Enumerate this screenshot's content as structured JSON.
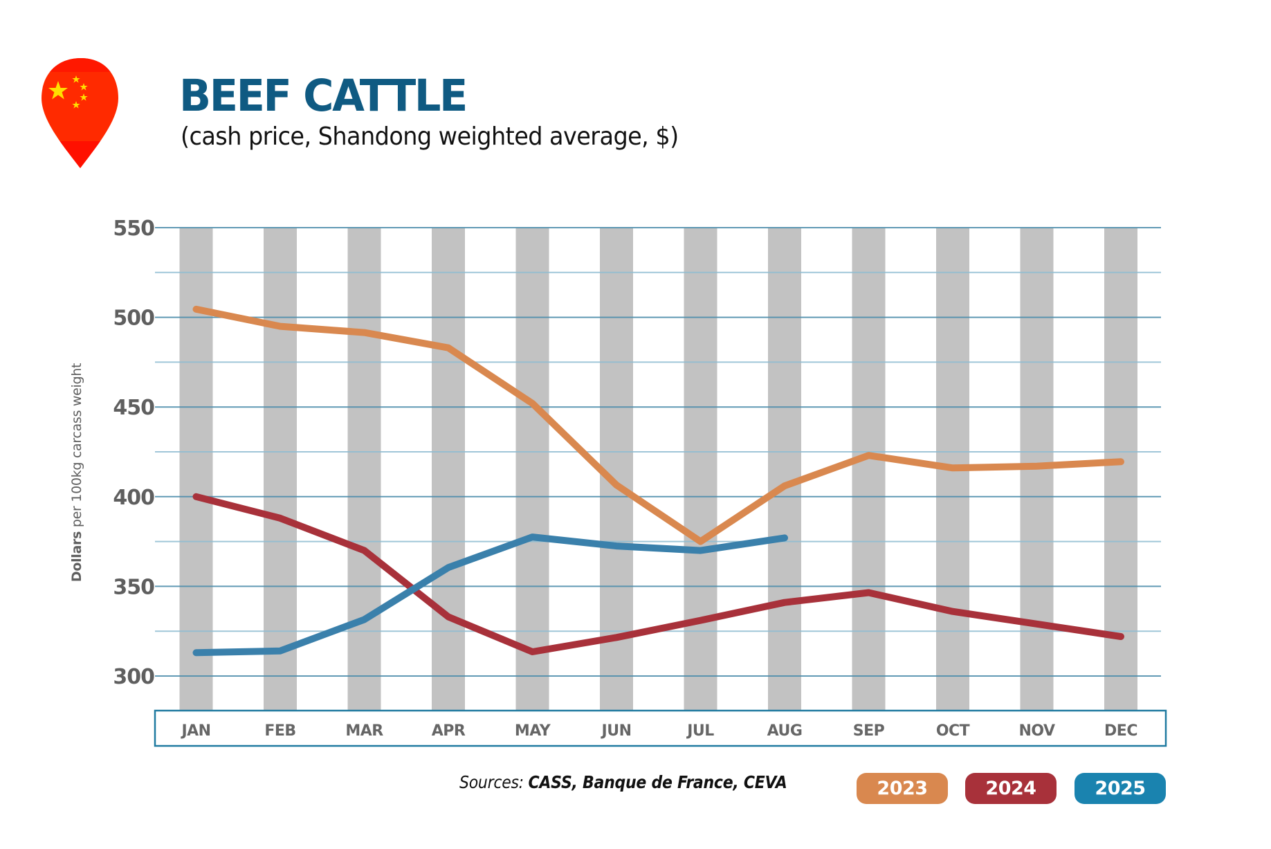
{
  "header": {
    "title": "BEEF CATTLE",
    "subtitle": "(cash price, Shandong weighted average, $)",
    "flag_icon": "china-flag-map-pin-icon"
  },
  "footer": {
    "sources_prefix": "Sources: ",
    "sources_list": "CASS, Banque de France, CEVA"
  },
  "legend": [
    {
      "label": "2023",
      "color": "#d9884f"
    },
    {
      "label": "2024",
      "color": "#a8313a"
    },
    {
      "label": "2025",
      "color": "#1a83af"
    }
  ],
  "chart_data": {
    "type": "line",
    "title": "BEEF CATTLE",
    "subtitle": "(cash price, Shandong weighted average, $)",
    "xlabel": "",
    "ylabel_bold": "Dollars",
    "ylabel_rest": " per 100kg carcass weight",
    "ylabel": "Dollars per 100kg carcass weight",
    "categories": [
      "JAN",
      "FEB",
      "MAR",
      "APR",
      "MAY",
      "JUN",
      "JUL",
      "AUG",
      "SEP",
      "OCT",
      "NOV",
      "DEC"
    ],
    "ylim": [
      300,
      550
    ],
    "yticks": [
      300,
      350,
      400,
      450,
      500,
      550
    ],
    "minor_gridlines": [
      325,
      375,
      425,
      475,
      525
    ],
    "grid": true,
    "legend_position": "bottom-right",
    "series": [
      {
        "name": "2023",
        "color": "#d9884f",
        "values": [
          504.5,
          495,
          491.5,
          483,
          452,
          406.5,
          375,
          406,
          423,
          416,
          417,
          419.5
        ]
      },
      {
        "name": "2024",
        "color": "#a8313a",
        "values": [
          400,
          388,
          370,
          333,
          313.5,
          321.5,
          331,
          341,
          346.5,
          336,
          329,
          322
        ]
      },
      {
        "name": "2025",
        "color": "#3a80ab",
        "values": [
          313,
          314,
          331.5,
          360.5,
          377.5,
          372.5,
          370,
          377
        ]
      }
    ]
  }
}
